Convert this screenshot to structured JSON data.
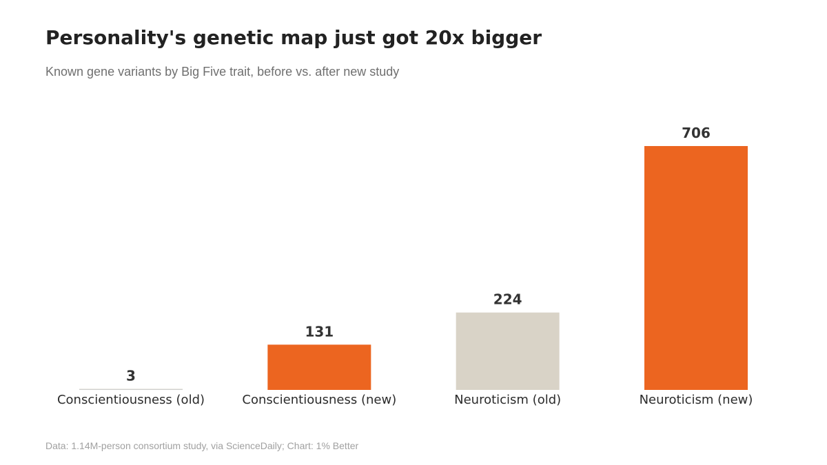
{
  "header": {
    "title": "Personality's genetic map just got 20x bigger",
    "subtitle": "Known gene variants by Big Five trait, before vs. after new study"
  },
  "footer": {
    "source": "Data: 1.14M-person consortium study, via ScienceDaily; Chart: 1% Better"
  },
  "colors": {
    "old": "#d9d3c7",
    "new": "#ec6520",
    "value_label": "#333333",
    "category_label": "#2b2b2b"
  },
  "chart_data": {
    "type": "bar",
    "title": "Personality's genetic map just got 20x bigger",
    "subtitle": "Known gene variants by Big Five trait, before vs. after new study",
    "xlabel": "",
    "ylabel": "",
    "categories": [
      "Conscientiousness (old)",
      "Conscientiousness (new)",
      "Neuroticism (old)",
      "Neuroticism (new)"
    ],
    "values": [
      3,
      131,
      224,
      706
    ],
    "bar_groups": [
      "old",
      "new",
      "old",
      "new"
    ],
    "data_labels": [
      "3",
      "131",
      "224",
      "706"
    ],
    "ylim": [
      0,
      706
    ],
    "grid": false,
    "legend": "none"
  }
}
